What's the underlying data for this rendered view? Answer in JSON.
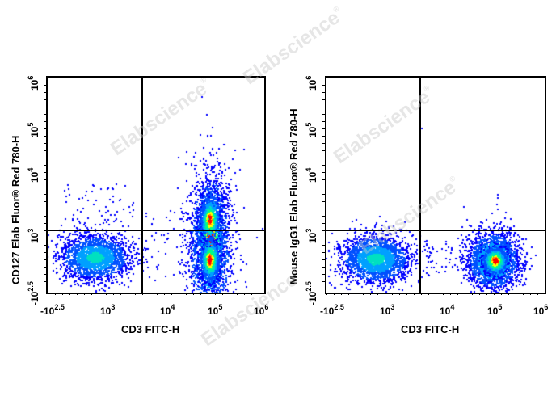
{
  "chart_data": [
    {
      "type": "scatter",
      "subtype": "flow-cytometry-pseudocolor-dot-plot",
      "title": "",
      "xlabel": "CD3 FITC-H",
      "ylabel": "CD127 Elab Fluor® Red 780-H",
      "x_scale": "biexponential",
      "y_scale": "biexponential",
      "x_ticks": [
        "-10^2.5",
        "10^3",
        "10^4",
        "10^5",
        "10^6"
      ],
      "y_ticks": [
        "-10^2.5",
        "10^3",
        "10^4",
        "10^5",
        "10^6"
      ],
      "xlim": [
        "-10^2.5",
        "10^6"
      ],
      "ylim": [
        "-10^2.5",
        "10^6"
      ],
      "quadrant_gate": {
        "x": 3200,
        "y": 1100
      },
      "populations": [
        {
          "name": "CD3- CD127-",
          "center_x": 500,
          "center_y": 250,
          "density": "low-medium",
          "quadrant": "lower-left"
        },
        {
          "name": "CD3+ CD127+/-",
          "center_x": 70000,
          "center_y": 900,
          "density": "high",
          "spread_y": [
            "-10^2.5",
            "6000"
          ],
          "quadrant": "lower-right/upper-right"
        }
      ],
      "grid": false,
      "legend": null
    },
    {
      "type": "scatter",
      "subtype": "flow-cytometry-pseudocolor-dot-plot",
      "title": "",
      "xlabel": "CD3 FITC-H",
      "ylabel": "Mouse IgG1 Elab Fluor® Red 780-H",
      "x_scale": "biexponential",
      "y_scale": "biexponential",
      "x_ticks": [
        "-10^2.5",
        "10^3",
        "10^4",
        "10^5",
        "10^6"
      ],
      "y_ticks": [
        "-10^2.5",
        "10^3",
        "10^4",
        "10^5",
        "10^6"
      ],
      "xlim": [
        "-10^2.5",
        "10^6"
      ],
      "ylim": [
        "-10^2.5",
        "10^6"
      ],
      "quadrant_gate": {
        "x": 3200,
        "y": 1100
      },
      "populations": [
        {
          "name": "CD3- isotype",
          "center_x": 500,
          "center_y": 250,
          "density": "low-medium",
          "quadrant": "lower-left"
        },
        {
          "name": "CD3+ isotype",
          "center_x": 70000,
          "center_y": 250,
          "density": "high",
          "quadrant": "lower-right"
        }
      ],
      "grid": false,
      "legend": null
    }
  ],
  "plots": [
    {
      "ylabel": "CD127 Elab Fluor® Red 780-H",
      "xlabel": "CD3 FITC-H",
      "xticks": [
        {
          "base": "-10",
          "exp": "2.5"
        },
        {
          "base": "10",
          "exp": "3"
        },
        {
          "base": "10",
          "exp": "4"
        },
        {
          "base": "10",
          "exp": "5"
        },
        {
          "base": "10",
          "exp": "6"
        }
      ],
      "yticks": [
        {
          "base": "-10",
          "exp": "2.5"
        },
        {
          "base": "10",
          "exp": "3"
        },
        {
          "base": "10",
          "exp": "4"
        },
        {
          "base": "10",
          "exp": "5"
        },
        {
          "base": "10",
          "exp": "6"
        }
      ]
    },
    {
      "ylabel": "Mouse IgG1 Elab Fluor® Red 780-H",
      "xlabel": "CD3 FITC-H",
      "xticks": [
        {
          "base": "-10",
          "exp": "2.5"
        },
        {
          "base": "10",
          "exp": "3"
        },
        {
          "base": "10",
          "exp": "4"
        },
        {
          "base": "10",
          "exp": "5"
        },
        {
          "base": "10",
          "exp": "6"
        }
      ],
      "yticks": [
        {
          "base": "-10",
          "exp": "2.5"
        },
        {
          "base": "10",
          "exp": "3"
        },
        {
          "base": "10",
          "exp": "4"
        },
        {
          "base": "10",
          "exp": "5"
        },
        {
          "base": "10",
          "exp": "6"
        }
      ]
    }
  ],
  "watermark": {
    "text": "Elabscience",
    "mark": "®"
  },
  "colors": {
    "sparse": "#0000ff",
    "low": "#00a0ff",
    "mid": "#00ff80",
    "high": "#ffff00",
    "peak": "#ff0000"
  }
}
